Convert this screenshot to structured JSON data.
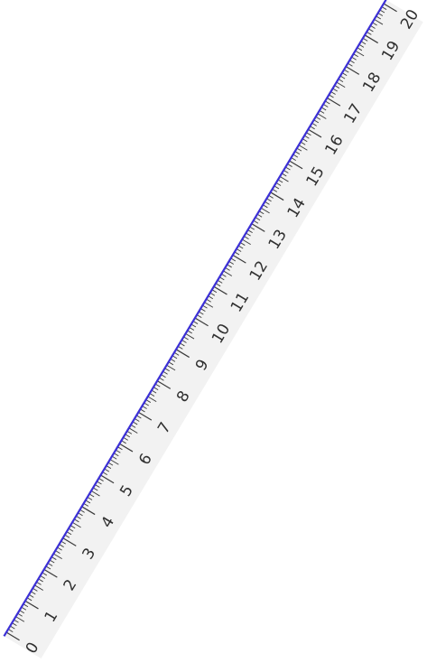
{
  "ruler": {
    "unit_labels": [
      "0",
      "1",
      "2",
      "3",
      "4",
      "5",
      "6",
      "7",
      "8",
      "9",
      "10",
      "11",
      "12",
      "13",
      "14",
      "15",
      "16",
      "17",
      "18",
      "19",
      "20"
    ],
    "subdivisions_per_unit": 10,
    "colors": {
      "body": "#f2f2f2",
      "edge": "#3b2fd6",
      "ticks": "#3a3a3a",
      "labels": "#2f2f2f"
    }
  }
}
